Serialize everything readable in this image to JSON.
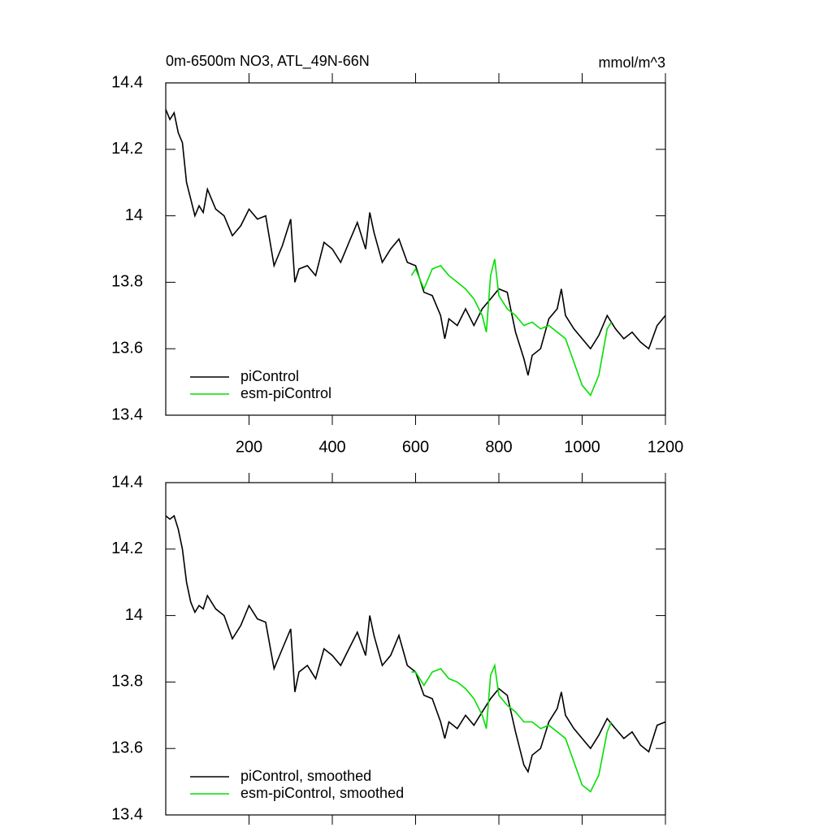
{
  "chart_data": [
    {
      "type": "line",
      "title": "0m-6500m NO3, ATL_49N-66N",
      "units": "mmol/m^3",
      "xlim": [
        0,
        1200
      ],
      "xticks": [
        200,
        400,
        600,
        800,
        1000,
        1200
      ],
      "xtick_labels": true,
      "ylim": [
        13.4,
        14.4
      ],
      "yticks": [
        13.4,
        13.6,
        13.8,
        14.0,
        14.2,
        14.4
      ],
      "legend": "lower left",
      "series": [
        {
          "name": "piControl",
          "color": "#000000",
          "x": [
            0,
            10,
            20,
            30,
            40,
            50,
            60,
            70,
            80,
            90,
            100,
            120,
            140,
            160,
            180,
            200,
            220,
            240,
            260,
            280,
            300,
            310,
            320,
            340,
            360,
            380,
            400,
            420,
            440,
            460,
            480,
            490,
            500,
            520,
            540,
            560,
            580,
            600,
            620,
            640,
            660,
            670,
            680,
            700,
            720,
            740,
            760,
            780,
            800,
            820,
            840,
            860,
            870,
            880,
            900,
            920,
            940,
            950,
            960,
            980,
            1000,
            1020,
            1040,
            1060,
            1080,
            1100,
            1120,
            1140,
            1160,
            1180,
            1200
          ],
          "values": [
            14.32,
            14.29,
            14.31,
            14.25,
            14.22,
            14.1,
            14.05,
            14.0,
            14.03,
            14.01,
            14.08,
            14.02,
            14.0,
            13.94,
            13.97,
            14.02,
            13.99,
            14.0,
            13.85,
            13.91,
            13.99,
            13.8,
            13.84,
            13.85,
            13.82,
            13.92,
            13.9,
            13.86,
            13.92,
            13.98,
            13.9,
            14.01,
            13.95,
            13.86,
            13.9,
            13.93,
            13.86,
            13.85,
            13.77,
            13.76,
            13.7,
            13.63,
            13.69,
            13.67,
            13.72,
            13.67,
            13.72,
            13.75,
            13.78,
            13.77,
            13.65,
            13.57,
            13.52,
            13.58,
            13.6,
            13.69,
            13.72,
            13.78,
            13.7,
            13.66,
            13.63,
            13.6,
            13.64,
            13.7,
            13.66,
            13.63,
            13.65,
            13.62,
            13.6,
            13.67,
            13.7
          ]
        },
        {
          "name": "esm-piControl",
          "color": "#00e000",
          "x": [
            590,
            600,
            620,
            640,
            660,
            680,
            700,
            720,
            740,
            760,
            770,
            780,
            790,
            800,
            820,
            840,
            860,
            880,
            900,
            920,
            940,
            960,
            980,
            1000,
            1020,
            1040,
            1060,
            1070
          ],
          "values": [
            13.82,
            13.84,
            13.78,
            13.84,
            13.85,
            13.82,
            13.8,
            13.78,
            13.75,
            13.7,
            13.65,
            13.82,
            13.87,
            13.76,
            13.72,
            13.7,
            13.67,
            13.68,
            13.66,
            13.67,
            13.65,
            13.63,
            13.56,
            13.49,
            13.46,
            13.52,
            13.66,
            13.68
          ]
        }
      ]
    },
    {
      "type": "line",
      "xlim": [
        0,
        1200
      ],
      "xticks": [
        200,
        400,
        600,
        800,
        1000,
        1200
      ],
      "xtick_labels": false,
      "ylim": [
        13.4,
        14.4
      ],
      "yticks": [
        13.4,
        13.6,
        13.8,
        14.0,
        14.2,
        14.4
      ],
      "legend": "lower left",
      "series": [
        {
          "name": "piControl, smoothed",
          "color": "#000000",
          "x": [
            0,
            10,
            20,
            30,
            40,
            50,
            60,
            70,
            80,
            90,
            100,
            120,
            140,
            160,
            180,
            200,
            220,
            240,
            260,
            280,
            300,
            310,
            320,
            340,
            360,
            380,
            400,
            420,
            440,
            460,
            480,
            490,
            500,
            520,
            540,
            560,
            580,
            600,
            620,
            640,
            660,
            670,
            680,
            700,
            720,
            740,
            760,
            780,
            800,
            820,
            840,
            860,
            870,
            880,
            900,
            920,
            940,
            950,
            960,
            980,
            1000,
            1020,
            1040,
            1060,
            1080,
            1100,
            1120,
            1140,
            1160,
            1180,
            1200
          ],
          "values": [
            14.3,
            14.29,
            14.3,
            14.26,
            14.2,
            14.1,
            14.04,
            14.01,
            14.03,
            14.02,
            14.06,
            14.02,
            14.0,
            13.93,
            13.97,
            14.03,
            13.99,
            13.98,
            13.84,
            13.9,
            13.96,
            13.77,
            13.83,
            13.85,
            13.81,
            13.9,
            13.88,
            13.85,
            13.9,
            13.95,
            13.88,
            14.0,
            13.94,
            13.85,
            13.88,
            13.94,
            13.85,
            13.83,
            13.76,
            13.75,
            13.68,
            13.63,
            13.68,
            13.66,
            13.7,
            13.67,
            13.71,
            13.75,
            13.78,
            13.76,
            13.65,
            13.55,
            13.53,
            13.58,
            13.6,
            13.68,
            13.72,
            13.77,
            13.7,
            13.66,
            13.63,
            13.6,
            13.64,
            13.69,
            13.66,
            13.63,
            13.65,
            13.61,
            13.59,
            13.67,
            13.68
          ]
        },
        {
          "name": "esm-piControl, smoothed",
          "color": "#00e000",
          "x": [
            590,
            600,
            620,
            640,
            660,
            680,
            700,
            720,
            740,
            760,
            770,
            780,
            790,
            800,
            820,
            840,
            860,
            880,
            900,
            920,
            940,
            960,
            980,
            1000,
            1020,
            1040,
            1060,
            1070
          ],
          "values": [
            13.83,
            13.83,
            13.79,
            13.83,
            13.84,
            13.81,
            13.8,
            13.78,
            13.75,
            13.7,
            13.66,
            13.82,
            13.85,
            13.76,
            13.73,
            13.71,
            13.68,
            13.68,
            13.66,
            13.67,
            13.65,
            13.63,
            13.56,
            13.49,
            13.47,
            13.52,
            13.65,
            13.68
          ]
        }
      ]
    }
  ]
}
